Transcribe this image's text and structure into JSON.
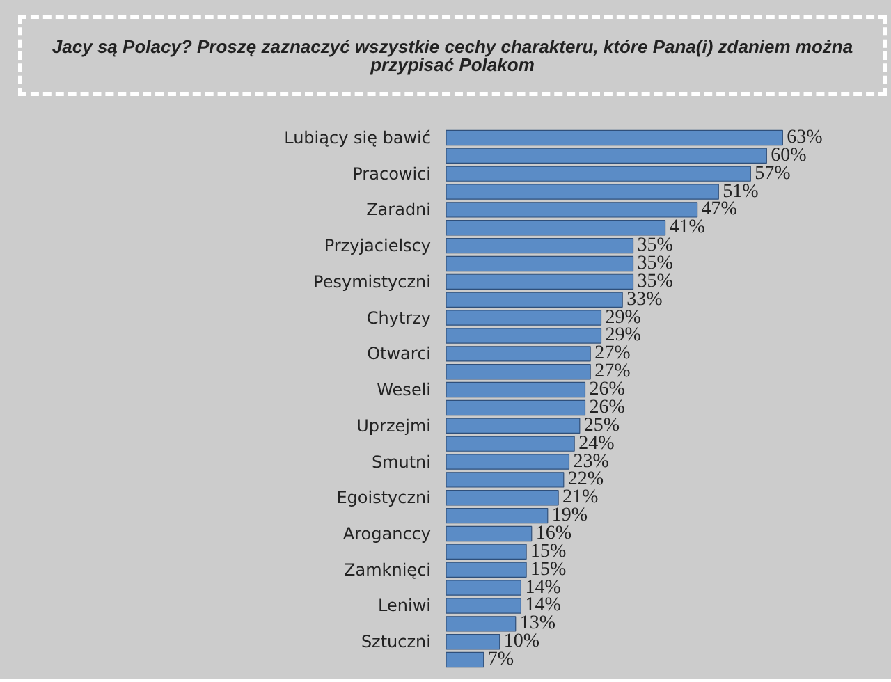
{
  "chart_data": {
    "type": "bar",
    "orientation": "horizontal",
    "title": "Jacy są Polacy? Proszę zaznaczyć wszystkie cechy charakteru, które Pana(i) zdaniem można przypisać Polakom",
    "categories": [
      "Lubiący się bawić",
      null,
      "Pracowici",
      null,
      "Zaradni",
      null,
      "Przyjacielscy",
      null,
      "Pesymistyczni",
      null,
      "Chytrzy",
      null,
      "Otwarci",
      null,
      "Weseli",
      null,
      "Uprzejmi",
      null,
      "Smutni",
      null,
      "Egoistyczni",
      null,
      "Aroganccy",
      null,
      "Zamknięci",
      null,
      "Leniwi",
      null,
      "Sztuczni",
      null
    ],
    "values": [
      63,
      60,
      57,
      51,
      47,
      41,
      35,
      35,
      35,
      33,
      29,
      29,
      27,
      27,
      26,
      26,
      25,
      24,
      23,
      22,
      21,
      19,
      16,
      15,
      15,
      14,
      14,
      13,
      10,
      7
    ],
    "value_labels": [
      "63%",
      "60%",
      "57%",
      "51%",
      "47%",
      "41%",
      "35%",
      "35%",
      "35%",
      "33%",
      "29%",
      "29%",
      "27%",
      "27%",
      "26%",
      "26%",
      "25%",
      "24%",
      "23%",
      "22%",
      "21%",
      "19%",
      "16%",
      "15%",
      "15%",
      "14%",
      "14%",
      "13%",
      "10%",
      "7%"
    ],
    "color": "#5b8cc6"
  }
}
